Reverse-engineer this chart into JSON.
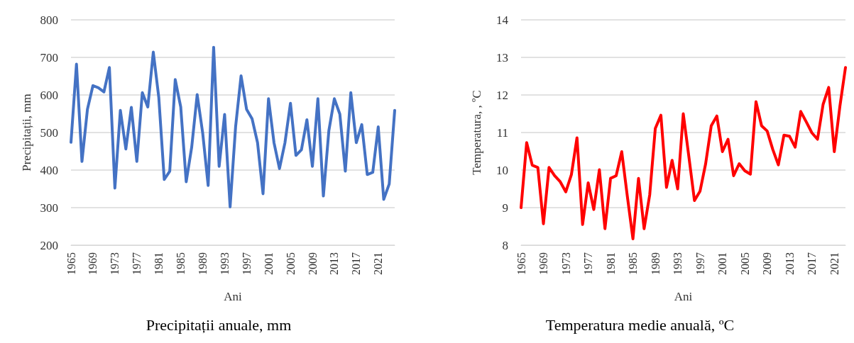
{
  "chart_data": [
    {
      "type": "line",
      "title": "Precipitații anuale, mm",
      "xlabel": "Ani",
      "ylabel": "Precipitații, mm",
      "categories": [
        "1965",
        null,
        null,
        null,
        "1969",
        null,
        null,
        null,
        "1973",
        null,
        null,
        null,
        "1977",
        null,
        null,
        null,
        "1981",
        null,
        null,
        null,
        "1985",
        null,
        null,
        null,
        "1989",
        null,
        null,
        null,
        "1993",
        null,
        null,
        null,
        "1997",
        null,
        null,
        null,
        "2001",
        null,
        null,
        null,
        "2005",
        null,
        null,
        null,
        "2009",
        null,
        null,
        null,
        "2013",
        null,
        null,
        null,
        "2017",
        null,
        null,
        null,
        "2021",
        null,
        null,
        null
      ],
      "series": [
        {
          "color": "#4472c4",
          "values": [
            474,
            682,
            423,
            562,
            625,
            619,
            608,
            673,
            352,
            559,
            456,
            567,
            423,
            606,
            568,
            714,
            594,
            375,
            397,
            641,
            568,
            369,
            461,
            601,
            499,
            359,
            727,
            410,
            548,
            302,
            515,
            651,
            562,
            537,
            473,
            337,
            590,
            473,
            404,
            473,
            578,
            439,
            454,
            534,
            410,
            590,
            331,
            505,
            590,
            549,
            397,
            606,
            473,
            521,
            388,
            394,
            515,
            322,
            363,
            559
          ]
        }
      ],
      "ylim": [
        200,
        800
      ],
      "yticks": [
        200,
        300,
        400,
        500,
        600,
        700,
        800
      ],
      "grid": "y",
      "marker": "none",
      "line_style": "solid"
    },
    {
      "type": "line",
      "title": "Temperatura medie anuală, ºC",
      "xlabel": "Ani",
      "ylabel": "Temperatura, , ºC",
      "categories": [
        "1965",
        null,
        null,
        null,
        "1969",
        null,
        null,
        null,
        "1973",
        null,
        null,
        null,
        "1977",
        null,
        null,
        null,
        "1981",
        null,
        null,
        null,
        "1985",
        null,
        null,
        null,
        "1989",
        null,
        null,
        null,
        "1993",
        null,
        null,
        null,
        "1997",
        null,
        null,
        null,
        "2001",
        null,
        null,
        null,
        "2005",
        null,
        null,
        null,
        "2009",
        null,
        null,
        null,
        "2013",
        null,
        null,
        null,
        "2017",
        null,
        null,
        null,
        "2021",
        null,
        null
      ],
      "series": [
        {
          "color": "#ff0000",
          "values": [
            9.0,
            10.73,
            10.13,
            10.07,
            8.57,
            10.07,
            9.85,
            9.69,
            9.42,
            9.88,
            10.86,
            8.55,
            9.66,
            8.95,
            10.01,
            8.44,
            9.78,
            9.85,
            10.49,
            9.3,
            8.17,
            9.78,
            8.44,
            9.34,
            11.11,
            11.46,
            9.54,
            10.26,
            9.5,
            11.5,
            10.36,
            9.19,
            9.44,
            10.17,
            11.18,
            11.44,
            10.49,
            10.82,
            9.85,
            10.17,
            9.98,
            9.89,
            11.82,
            11.18,
            11.04,
            10.55,
            10.14,
            10.93,
            10.9,
            10.61,
            11.56,
            11.28,
            10.99,
            10.82,
            11.75,
            12.2,
            10.49,
            11.7,
            12.73
          ]
        }
      ],
      "ylim": [
        8,
        14
      ],
      "yticks": [
        8,
        9,
        10,
        11,
        12,
        13,
        14
      ],
      "grid": "y",
      "marker": "none",
      "line_style": "solid"
    }
  ]
}
